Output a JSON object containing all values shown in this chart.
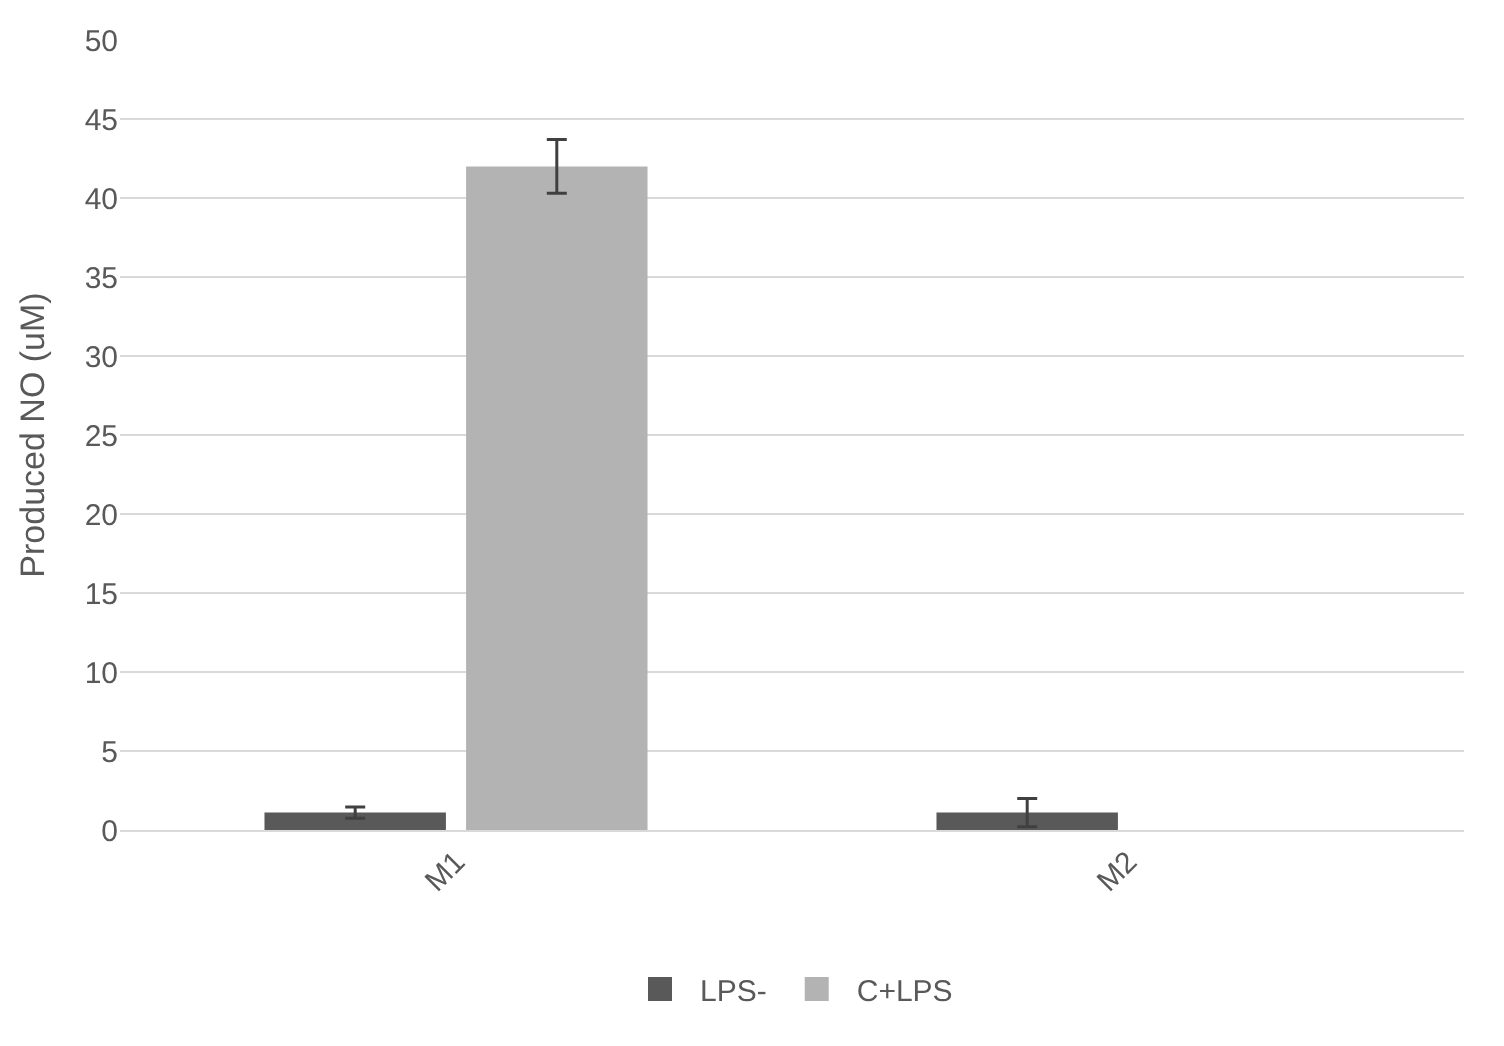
{
  "chart_data": {
    "type": "bar",
    "ylabel": "Produced NO (uM)",
    "categories": [
      "M1",
      "M2"
    ],
    "series": [
      {
        "name": "LPS-",
        "color": "#595959",
        "values": [
          1.1,
          1.1
        ],
        "errors": [
          0.35,
          0.9
        ]
      },
      {
        "name": "C+LPS",
        "color": "#b3b3b3",
        "values": [
          42.0,
          null
        ],
        "errors": [
          1.7,
          null
        ]
      }
    ],
    "ylim": [
      0,
      50
    ],
    "yticks": [
      0,
      5,
      10,
      15,
      20,
      25,
      30,
      35,
      40,
      45,
      50
    ],
    "grid": "y",
    "legend": "bottom"
  }
}
